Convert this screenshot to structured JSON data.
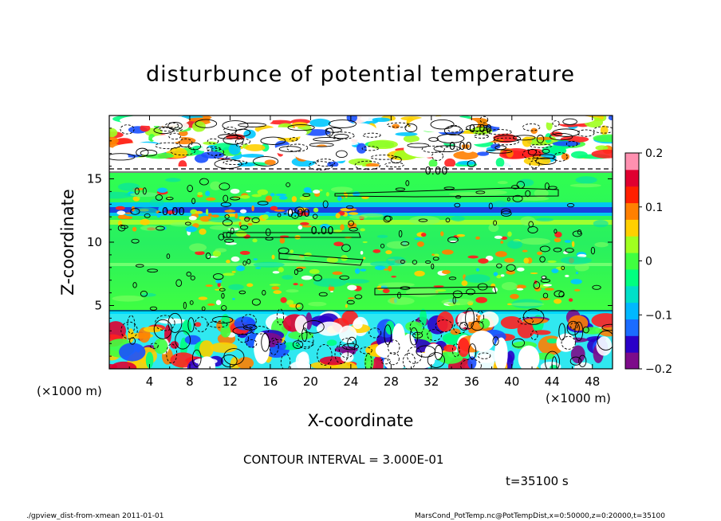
{
  "chart_data": {
    "type": "heatmap",
    "title": "disturbunce of potential temperature",
    "xlabel": "X-coordinate",
    "ylabel": "Z-coordinate",
    "x_unit": "(×1000 m)",
    "y_unit": "(×1000 m)",
    "xlim": [
      0,
      50
    ],
    "ylim": [
      0,
      20
    ],
    "x_ticks": [
      4,
      8,
      12,
      16,
      20,
      24,
      28,
      32,
      36,
      40,
      44,
      48
    ],
    "y_ticks": [
      5,
      10,
      15
    ],
    "colorbar": {
      "ticks": [
        0.2,
        0.1,
        0,
        -0.1,
        -0.2
      ],
      "tick_labels": [
        "0.2",
        "0.1",
        "0",
        "−0.1",
        "−0.2"
      ],
      "range": [
        -0.2,
        0.2
      ],
      "colors": [
        "#7d0b8a",
        "#2a00c8",
        "#1a6cff",
        "#00b8ff",
        "#00e0c8",
        "#00ff80",
        "#40ff40",
        "#a0ff20",
        "#ffd000",
        "#ff8000",
        "#ff2000",
        "#e00030",
        "#ff90b0"
      ]
    },
    "contour_labels": [
      "-0.00",
      "-0.00",
      "0.00",
      "-0.00",
      "-0.00",
      "0.00"
    ],
    "contour_interval_text": "CONTOUR INTERVAL = 3.000E-01",
    "time_text": "t=35100 s",
    "grid": false,
    "legend": "colorbar-right"
  },
  "footer": {
    "left": "./gpview_dist-from-xmean   2011-01-01",
    "right": "MarsCond_PotTemp.nc@PotTempDist,x=0:50000,z=0:20000,t=35100"
  }
}
